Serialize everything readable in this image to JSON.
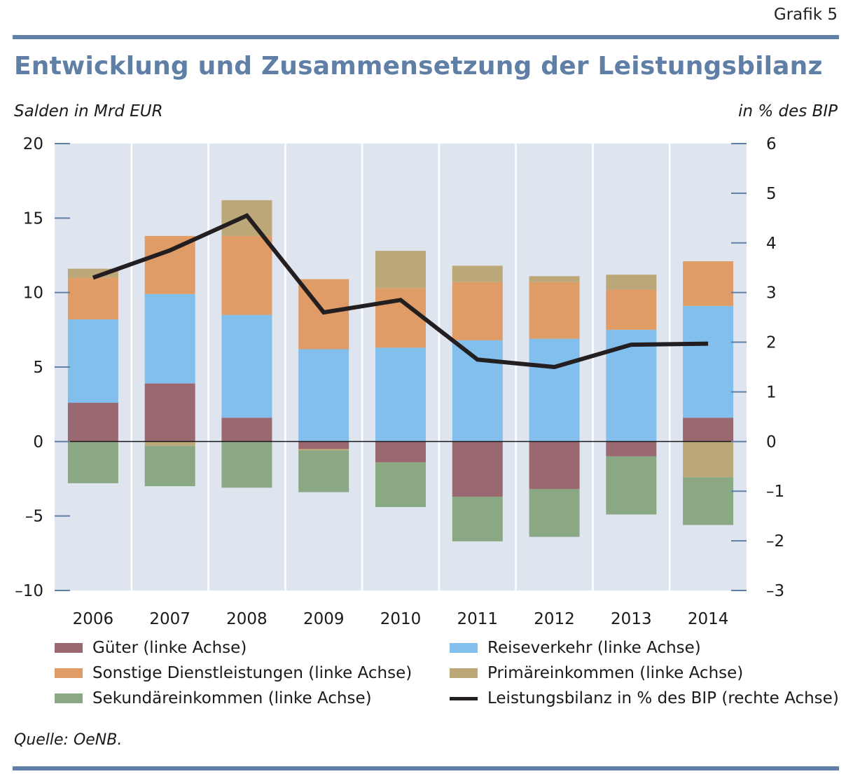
{
  "header": {
    "grafik": "Grafik 5",
    "title": "Entwicklung und Zusammensetzung der Leistungsbilanz",
    "unit_left": "Salden in Mrd EUR",
    "unit_right": "in % des BIP"
  },
  "source": "Quelle: OeNB.",
  "colors": {
    "rule": "#5f7fa6",
    "plot_bg": "#dfe5ef",
    "gueter": "#9a6870",
    "sonstige": "#e09c66",
    "sekundaer": "#8ba884",
    "reise": "#82bfec",
    "primaer": "#bba778",
    "line": "#231f20",
    "tick": "#5f7fa6"
  },
  "legend": [
    {
      "label": "Güter (linke Achse)",
      "color": "#9a6870",
      "kind": "box"
    },
    {
      "label": "Sonstige Dienstleistungen (linke Achse)",
      "color": "#e09c66",
      "kind": "box"
    },
    {
      "label": "Sekundäreinkommen (linke Achse)",
      "color": "#8ba884",
      "kind": "box"
    },
    {
      "label": "Reiseverkehr (linke Achse)",
      "color": "#82bfec",
      "kind": "box"
    },
    {
      "label": "Primäreinkommen (linke Achse)",
      "color": "#bba778",
      "kind": "box"
    },
    {
      "label": "Leistungsbilanz in % des BIP (rechte Achse)",
      "color": "#231f20",
      "kind": "line"
    }
  ],
  "chart_data": {
    "type": "bar",
    "stacked": true,
    "title": "Entwicklung und Zusammensetzung der Leistungsbilanz",
    "ylabel": "Salden in Mrd EUR",
    "y2label": "in % des BIP",
    "categories": [
      "2006",
      "2007",
      "2008",
      "2009",
      "2010",
      "2011",
      "2012",
      "2013",
      "2014"
    ],
    "ylim": [
      -10,
      20
    ],
    "yticks": [
      -10,
      -5,
      0,
      5,
      10,
      15,
      20
    ],
    "ytick_labels": [
      "–10",
      "–5",
      "0",
      "5",
      "10",
      "15",
      "20"
    ],
    "y2lim": [
      -3,
      6
    ],
    "y2ticks": [
      -3,
      -2,
      -1,
      0,
      1,
      2,
      3,
      4,
      5,
      6
    ],
    "y2tick_labels": [
      "–3",
      "–2",
      "–1",
      "0",
      "1",
      "2",
      "3",
      "4",
      "5",
      "6"
    ],
    "series": [
      {
        "name": "Güter (linke Achse)",
        "key": "gueter",
        "values": [
          2.6,
          3.9,
          1.6,
          -0.5,
          -1.4,
          -3.7,
          -3.2,
          -1.0,
          1.6
        ]
      },
      {
        "name": "Reiseverkehr (linke Achse)",
        "key": "reise",
        "values": [
          5.6,
          6.0,
          6.9,
          6.2,
          6.3,
          6.8,
          6.9,
          7.5,
          7.5
        ]
      },
      {
        "name": "Sonstige Dienstleistungen (linke Achse)",
        "key": "sonstige",
        "values": [
          2.8,
          3.9,
          5.3,
          4.7,
          4.0,
          3.9,
          3.8,
          2.7,
          3.0
        ]
      },
      {
        "name": "Primäreinkommen (linke Achse)",
        "key": "primaer",
        "values": [
          0.6,
          -0.3,
          2.4,
          -0.1,
          2.5,
          1.1,
          0.4,
          1.0,
          -2.4
        ]
      },
      {
        "name": "Sekundäreinkommen (linke Achse)",
        "key": "sekundaer",
        "values": [
          -2.8,
          -2.7,
          -3.1,
          -2.8,
          -3.0,
          -3.0,
          -3.2,
          -3.9,
          -3.2
        ]
      }
    ],
    "line": {
      "name": "Leistungsbilanz in % des BIP (rechte Achse)",
      "axis": "right",
      "values": [
        3.3,
        3.85,
        4.55,
        2.6,
        2.85,
        1.65,
        1.5,
        1.95,
        1.97
      ]
    },
    "grid": false
  }
}
